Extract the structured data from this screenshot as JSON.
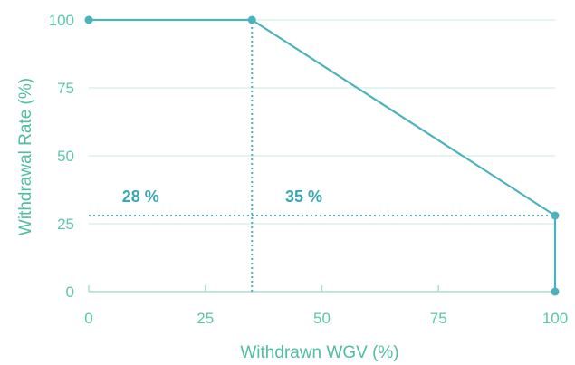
{
  "chart_data": {
    "type": "line",
    "title": "",
    "xlabel": "Withdrawn WGV (%)",
    "ylabel": "Withdrawal Rate (%)",
    "xlim": [
      0,
      100
    ],
    "ylim": [
      0,
      100
    ],
    "x_ticks": [
      0,
      25,
      50,
      75,
      100
    ],
    "y_ticks": [
      0,
      25,
      50,
      75,
      100
    ],
    "x_tick_labels": [
      "0",
      "25",
      "50",
      "75",
      "100"
    ],
    "y_tick_labels": [
      "0",
      "25",
      "50",
      "75",
      "100"
    ],
    "grid": "horizontal",
    "series": [
      {
        "x": [
          0,
          35,
          100,
          100
        ],
        "y": [
          100,
          100,
          28,
          0
        ]
      }
    ],
    "reference_lines": [
      {
        "orientation": "vertical",
        "x": 35,
        "y_from": 0,
        "y_to": 100
      },
      {
        "orientation": "horizontal",
        "y": 28,
        "x_from": 0,
        "x_to": 100
      }
    ],
    "annotations": [
      {
        "text": "28 %",
        "x": 5,
        "y": 28
      },
      {
        "text": "35 %",
        "x": 40,
        "y": 28
      }
    ],
    "colors": {
      "line": "#4ab3bd",
      "marker": "#4ab3bd",
      "grid": "#c9e8e2",
      "axis": "#a9ddd2",
      "tick_label": "#5cc7a8",
      "axis_title": "#4fbf9f",
      "annotation": "#3aa7b3"
    }
  }
}
